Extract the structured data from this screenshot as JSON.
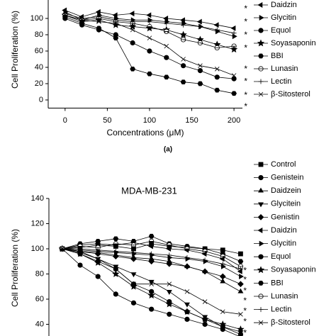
{
  "chart_data": [
    {
      "type": "line",
      "x_label": "Concentrations (μM)",
      "y_label": "Cell Proliferation (%)",
      "panel_label": "(a)",
      "x": [
        0,
        20,
        40,
        60,
        80,
        100,
        120,
        140,
        160,
        180,
        200
      ],
      "xlim": [
        -20,
        210
      ],
      "xticks": [
        0,
        50,
        100,
        150,
        200
      ],
      "ylim": [
        -10,
        140
      ],
      "yticks": [
        0,
        20,
        40,
        60,
        80,
        100
      ],
      "series": [
        {
          "name": "Daidzin",
          "color": "#000000",
          "marker": "triangle-left",
          "values": [
            110,
            102,
            108,
            104,
            106,
            104,
            100,
            98,
            96,
            92,
            88
          ]
        },
        {
          "name": "Glycitin",
          "color": "#000000",
          "marker": "triangle-right",
          "values": [
            108,
            98,
            104,
            100,
            98,
            98,
            96,
            94,
            90,
            84,
            78
          ]
        },
        {
          "name": "Equol",
          "color": "#000000",
          "marker": "circle",
          "values": [
            100,
            92,
            86,
            80,
            70,
            60,
            52,
            42,
            36,
            28,
            26
          ]
        },
        {
          "name": "Soyasaponin",
          "color": "#000000",
          "marker": "star",
          "values": [
            104,
            96,
            98,
            92,
            90,
            88,
            86,
            80,
            74,
            68,
            62
          ]
        },
        {
          "name": "BBI",
          "color": "#000000",
          "marker": "hexagon",
          "values": [
            102,
            94,
            88,
            76,
            38,
            32,
            28,
            22,
            20,
            12,
            8
          ]
        },
        {
          "name": "Lunasin",
          "color": "#000000",
          "marker": "half-circle",
          "values": [
            104,
            98,
            100,
            96,
            94,
            90,
            84,
            74,
            70,
            64,
            66
          ]
        },
        {
          "name": "Lectin",
          "color": "#000000",
          "marker": "plus",
          "values": [
            106,
            100,
            102,
            98,
            96,
            96,
            94,
            92,
            90,
            86,
            82
          ]
        },
        {
          "name": "β-Sitosterol",
          "color": "#000000",
          "marker": "cross",
          "values": [
            104,
            98,
            96,
            94,
            86,
            76,
            66,
            50,
            42,
            38,
            30
          ]
        }
      ],
      "annotations": [
        {
          "text": "*",
          "x": 214,
          "y": 114
        },
        {
          "text": "*",
          "x": 214,
          "y": 98
        },
        {
          "text": "*",
          "x": 214,
          "y": 82
        },
        {
          "text": "*",
          "x": 214,
          "y": 66
        },
        {
          "text": "*",
          "x": 214,
          "y": 40
        },
        {
          "text": "*",
          "x": 214,
          "y": 25
        },
        {
          "text": "*",
          "x": 214,
          "y": 8
        },
        {
          "text": "*",
          "x": 214,
          "y": -6
        }
      ]
    },
    {
      "type": "line",
      "title": "MDA-MB-231",
      "y_label": "Cell Proliferation (%)",
      "x": [
        0,
        20,
        40,
        60,
        80,
        100,
        120,
        140,
        160,
        180,
        200
      ],
      "xlim": [
        -15,
        210
      ],
      "ylim": [
        20,
        140
      ],
      "yticks": [
        40,
        60,
        80,
        100,
        120,
        140
      ],
      "series": [
        {
          "name": "Control",
          "color": "#000000",
          "marker": "square",
          "values": [
            100,
            101,
            103,
            102,
            100,
            104,
            102,
            101,
            100,
            99,
            96
          ]
        },
        {
          "name": "Genistein",
          "color": "#000000",
          "marker": "circle",
          "values": [
            100,
            96,
            90,
            84,
            72,
            66,
            58,
            50,
            44,
            38,
            32
          ]
        },
        {
          "name": "Daidzein",
          "color": "#000000",
          "marker": "triangle-up",
          "values": [
            100,
            98,
            97,
            95,
            93,
            92,
            90,
            86,
            82,
            74,
            66
          ]
        },
        {
          "name": "Glycitein",
          "color": "#000000",
          "marker": "triangle-down",
          "values": [
            100,
            97,
            92,
            86,
            80,
            74,
            66,
            56,
            46,
            38,
            34
          ]
        },
        {
          "name": "Genistin",
          "color": "#000000",
          "marker": "diamond",
          "values": [
            100,
            98,
            96,
            94,
            92,
            90,
            88,
            86,
            82,
            78,
            72
          ]
        },
        {
          "name": "Daidzin",
          "color": "#000000",
          "marker": "triangle-left",
          "values": [
            100,
            103,
            104,
            103,
            105,
            102,
            100,
            99,
            96,
            92,
            82
          ]
        },
        {
          "name": "Glycitin",
          "color": "#000000",
          "marker": "triangle-right",
          "values": [
            100,
            99,
            98,
            97,
            96,
            95,
            93,
            92,
            90,
            86,
            78
          ]
        },
        {
          "name": "Equol",
          "color": "#000000",
          "marker": "circle",
          "values": [
            100,
            87,
            78,
            64,
            57,
            52,
            48,
            44,
            40,
            36,
            30
          ]
        },
        {
          "name": "Soyasaponin",
          "color": "#000000",
          "marker": "star",
          "values": [
            100,
            96,
            89,
            80,
            70,
            63,
            56,
            50,
            44,
            40,
            36
          ]
        },
        {
          "name": "BBI",
          "color": "#000000",
          "marker": "hexagon",
          "values": [
            100,
            104,
            106,
            108,
            106,
            110,
            104,
            102,
            100,
            96,
            90
          ]
        },
        {
          "name": "Lunasin",
          "color": "#000000",
          "marker": "half-circle",
          "values": [
            100,
            102,
            101,
            104,
            103,
            106,
            103,
            100,
            98,
            94,
            86
          ]
        },
        {
          "name": "Lectin",
          "color": "#000000",
          "marker": "plus",
          "values": [
            100,
            100,
            99,
            98,
            97,
            96,
            95,
            93,
            91,
            88,
            84
          ]
        },
        {
          "name": "β-Sitosterol",
          "color": "#000000",
          "marker": "cross",
          "values": [
            100,
            98,
            92,
            84,
            72,
            72,
            72,
            66,
            58,
            50,
            48
          ]
        }
      ],
      "annotations": [
        {
          "text": "*",
          "x": 205,
          "y": 84
        },
        {
          "text": "*",
          "x": 205,
          "y": 76.6
        },
        {
          "text": "*",
          "x": 205,
          "y": 68
        },
        {
          "text": "*",
          "x": 205,
          "y": 60
        },
        {
          "text": "*",
          "x": 205,
          "y": 52
        },
        {
          "text": "*",
          "x": 205,
          "y": 43.6
        },
        {
          "text": "*",
          "x": 205,
          "y": 34.6
        }
      ]
    }
  ]
}
